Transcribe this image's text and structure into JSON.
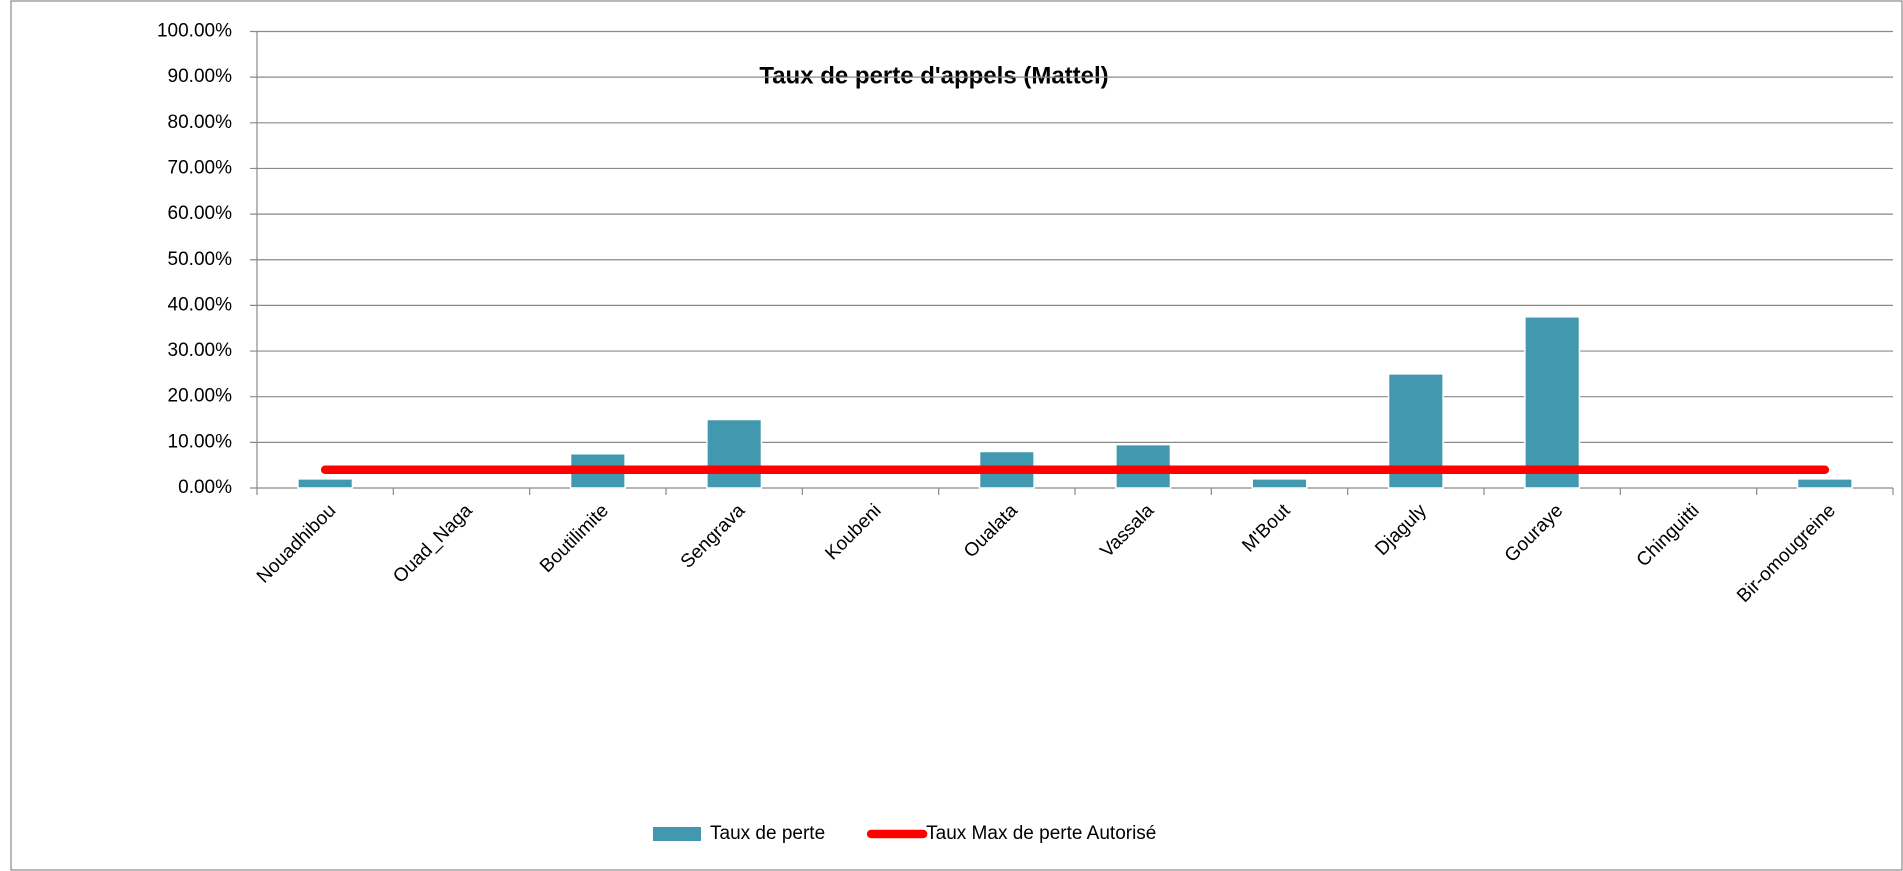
{
  "chart_data": {
    "type": "bar",
    "title": "Taux de perte d'appels (Mattel)",
    "categories": [
      "Nouadhibou",
      "Ouad_Naga",
      "Boutilimite",
      "Sengrava",
      "Koubeni",
      "Oualata",
      "Vassala",
      "M'Bout",
      "Djaguly",
      "Gouraye",
      "Chinguitti",
      "Bir-omougreine"
    ],
    "series": [
      {
        "name": "Taux de perte",
        "type": "bar",
        "color": "#4198af",
        "values": [
          2,
          0,
          7.5,
          15,
          0,
          8,
          9.5,
          2,
          25,
          37.5,
          0,
          2
        ]
      },
      {
        "name": "Taux Max de perte Autorisé",
        "type": "line",
        "color": "#ff0000",
        "values": [
          4,
          4,
          4,
          4,
          4,
          4,
          4,
          4,
          4,
          4,
          4,
          4
        ]
      }
    ],
    "ylim": [
      0,
      100
    ],
    "yticks": [
      {
        "value": 0,
        "label": "0.00%"
      },
      {
        "value": 10,
        "label": "10.00%"
      },
      {
        "value": 20,
        "label": "20.00%"
      },
      {
        "value": 30,
        "label": "30.00%"
      },
      {
        "value": 40,
        "label": "40.00%"
      },
      {
        "value": 50,
        "label": "50.00%"
      },
      {
        "value": 60,
        "label": "60.00%"
      },
      {
        "value": 70,
        "label": "70.00%"
      },
      {
        "value": 80,
        "label": "80.00%"
      },
      {
        "value": 90,
        "label": "90.00%"
      },
      {
        "value": 100,
        "label": "100.00%"
      }
    ],
    "grid": true,
    "legend": "bottom"
  }
}
